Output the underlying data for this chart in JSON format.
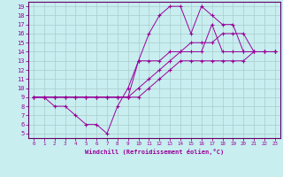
{
  "xlabel": "Windchill (Refroidissement éolien,°C)",
  "xlim": [
    -0.5,
    23.5
  ],
  "ylim": [
    4.5,
    19.5
  ],
  "xticks": [
    0,
    1,
    2,
    3,
    4,
    5,
    6,
    7,
    8,
    9,
    10,
    11,
    12,
    13,
    14,
    15,
    16,
    17,
    18,
    19,
    20,
    21,
    22,
    23
  ],
  "yticks": [
    5,
    6,
    7,
    8,
    9,
    10,
    11,
    12,
    13,
    14,
    15,
    16,
    17,
    18,
    19
  ],
  "bg_color": "#c8eef0",
  "grid_color": "#aacccc",
  "line_color": "#990099",
  "spine_color": "#660066",
  "lines": [
    {
      "x": [
        0,
        1,
        2,
        3,
        4,
        5,
        6,
        7,
        8,
        9,
        10,
        11,
        12,
        13,
        14,
        15,
        16,
        17,
        18,
        19,
        20,
        21,
        22,
        23
      ],
      "y": [
        9,
        9,
        9,
        9,
        9,
        9,
        9,
        9,
        9,
        9,
        9,
        10,
        11,
        12,
        13,
        13,
        13,
        13,
        13,
        13,
        13,
        14,
        14,
        14
      ]
    },
    {
      "x": [
        0,
        1,
        2,
        3,
        4,
        5,
        6,
        7,
        8,
        9,
        10,
        11,
        12,
        13,
        14,
        15,
        16,
        17,
        18,
        19,
        20,
        21,
        22,
        23
      ],
      "y": [
        9,
        9,
        8,
        8,
        7,
        6,
        6,
        5,
        8,
        10,
        13,
        13,
        13,
        14,
        14,
        14,
        14,
        17,
        14,
        14,
        14,
        14,
        14,
        14
      ]
    },
    {
      "x": [
        0,
        1,
        2,
        3,
        4,
        5,
        6,
        7,
        8,
        9,
        10,
        11,
        12,
        13,
        14,
        15,
        16,
        17,
        18,
        19,
        20,
        21,
        22,
        23
      ],
      "y": [
        9,
        9,
        9,
        9,
        9,
        9,
        9,
        9,
        9,
        9,
        13,
        16,
        18,
        19,
        19,
        16,
        19,
        18,
        17,
        17,
        14,
        14,
        14,
        14
      ]
    },
    {
      "x": [
        0,
        1,
        2,
        3,
        4,
        5,
        6,
        7,
        8,
        9,
        10,
        11,
        12,
        13,
        14,
        15,
        16,
        17,
        18,
        19,
        20,
        21,
        22,
        23
      ],
      "y": [
        9,
        9,
        9,
        9,
        9,
        9,
        9,
        9,
        9,
        9,
        10,
        11,
        12,
        13,
        14,
        15,
        15,
        15,
        16,
        16,
        16,
        14,
        14,
        14
      ]
    }
  ]
}
